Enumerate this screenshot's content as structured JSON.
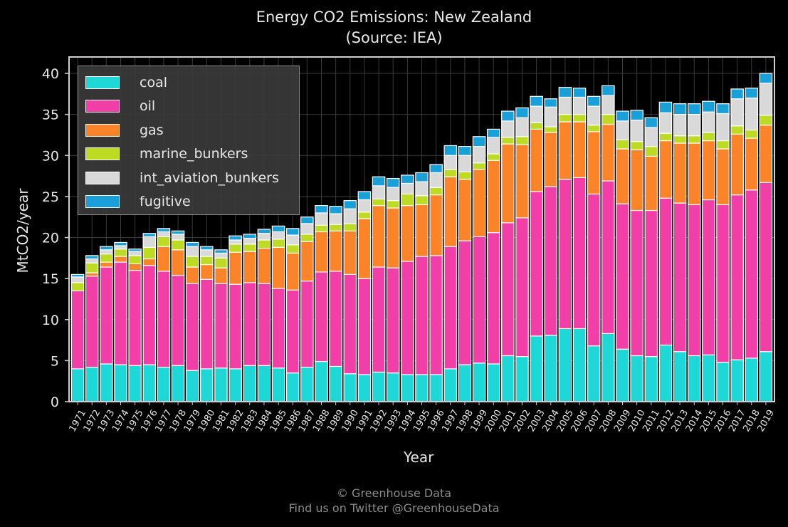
{
  "title_line1": "Energy CO2 Emissions: New Zealand",
  "title_line2": "(Source: IEA)",
  "credit_line1": "© Greenhouse Data",
  "credit_line2": "Find us on Twitter @GreenhouseData",
  "chart_data": {
    "type": "bar",
    "stacked": true,
    "title": "Energy CO2 Emissions: New Zealand (Source: IEA)",
    "xlabel": "Year",
    "ylabel": "MtCO2/year",
    "ylim": [
      0,
      42
    ],
    "yticks": [
      0,
      5,
      10,
      15,
      20,
      25,
      30,
      35,
      40
    ],
    "grid": true,
    "legend_position": "top-left",
    "categories": [
      "1971",
      "1972",
      "1973",
      "1974",
      "1975",
      "1976",
      "1977",
      "1978",
      "1979",
      "1980",
      "1981",
      "1982",
      "1983",
      "1984",
      "1985",
      "1986",
      "1987",
      "1988",
      "1989",
      "1990",
      "1991",
      "1992",
      "1993",
      "1994",
      "1995",
      "1996",
      "1997",
      "1998",
      "1999",
      "2000",
      "2001",
      "2002",
      "2003",
      "2004",
      "2005",
      "2006",
      "2007",
      "2008",
      "2009",
      "2010",
      "2011",
      "2012",
      "2013",
      "2014",
      "2015",
      "2016",
      "2017",
      "2018",
      "2019"
    ],
    "series": [
      {
        "name": "coal",
        "color": "#1dd8d6",
        "values": [
          4.0,
          4.2,
          4.6,
          4.5,
          4.4,
          4.5,
          4.2,
          4.4,
          3.8,
          4.0,
          4.1,
          4.0,
          4.4,
          4.4,
          4.1,
          3.5,
          4.2,
          4.9,
          4.3,
          3.4,
          3.3,
          3.6,
          3.5,
          3.3,
          3.3,
          3.3,
          4.0,
          4.5,
          4.7,
          4.6,
          5.6,
          5.5,
          8.0,
          8.1,
          8.9,
          8.9,
          6.8,
          8.3,
          6.4,
          5.6,
          5.5,
          6.9,
          6.1,
          5.6,
          5.7,
          4.8,
          5.1,
          5.3,
          6.1
        ]
      },
      {
        "name": "oil",
        "color": "#f23fa7",
        "values": [
          9.5,
          11.1,
          11.8,
          12.5,
          11.6,
          12.1,
          11.7,
          11.0,
          10.6,
          10.9,
          10.3,
          10.3,
          10.1,
          10.0,
          9.7,
          10.1,
          10.5,
          10.9,
          11.6,
          12.1,
          11.7,
          12.8,
          12.8,
          13.8,
          14.4,
          14.5,
          14.9,
          15.1,
          15.4,
          16.0,
          16.2,
          16.9,
          17.6,
          18.1,
          18.2,
          18.4,
          18.5,
          18.6,
          17.7,
          17.7,
          17.8,
          17.9,
          18.1,
          18.4,
          18.9,
          19.2,
          20.1,
          20.5,
          20.6
        ]
      },
      {
        "name": "gas",
        "color": "#fa8427",
        "values": [
          0.0,
          0.4,
          0.6,
          0.7,
          0.8,
          0.8,
          3.0,
          3.1,
          2.0,
          1.8,
          1.9,
          3.9,
          3.8,
          4.3,
          5.0,
          4.5,
          4.8,
          4.9,
          4.9,
          5.3,
          7.3,
          7.5,
          7.3,
          6.8,
          6.3,
          7.4,
          8.5,
          7.5,
          8.2,
          8.8,
          9.6,
          8.9,
          7.6,
          6.6,
          7.0,
          6.8,
          7.6,
          6.9,
          6.7,
          7.4,
          6.6,
          7.0,
          7.3,
          7.5,
          7.2,
          6.8,
          7.4,
          6.3,
          7.0
        ]
      },
      {
        "name": "marine_bunkers",
        "color": "#bcdb22",
        "values": [
          1.0,
          1.2,
          1.0,
          0.9,
          1.0,
          1.4,
          1.2,
          1.2,
          1.3,
          1.0,
          1.2,
          1.0,
          0.9,
          1.0,
          1.0,
          1.0,
          0.9,
          0.8,
          0.8,
          0.9,
          0.8,
          0.8,
          0.9,
          1.4,
          1.1,
          0.9,
          0.9,
          0.9,
          0.8,
          0.8,
          0.8,
          1.0,
          0.8,
          0.7,
          0.9,
          0.9,
          0.8,
          1.2,
          1.1,
          1.0,
          1.2,
          0.9,
          0.9,
          0.9,
          1.0,
          1.0,
          1.0,
          1.0,
          1.2
        ]
      },
      {
        "name": "int_aviation_bunkers",
        "color": "#d9d9d9",
        "values": [
          0.7,
          0.5,
          0.5,
          0.4,
          0.5,
          1.3,
          0.6,
          0.7,
          1.2,
          0.8,
          0.6,
          0.5,
          0.7,
          0.8,
          0.9,
          1.2,
          1.3,
          1.5,
          1.3,
          1.8,
          1.5,
          1.6,
          1.6,
          1.3,
          1.7,
          1.8,
          1.7,
          2.0,
          2.0,
          2.0,
          2.0,
          2.3,
          2.0,
          2.4,
          2.1,
          2.1,
          2.3,
          2.3,
          2.3,
          2.6,
          2.3,
          2.5,
          2.6,
          2.6,
          2.5,
          3.3,
          3.3,
          3.9,
          3.9
        ]
      },
      {
        "name": "fugitive",
        "color": "#19a0d8",
        "values": [
          0.3,
          0.4,
          0.4,
          0.4,
          0.3,
          0.4,
          0.4,
          0.4,
          0.5,
          0.4,
          0.4,
          0.5,
          0.5,
          0.5,
          0.7,
          0.8,
          0.8,
          0.9,
          0.9,
          1.0,
          1.0,
          1.1,
          1.1,
          1.0,
          1.1,
          1.0,
          1.2,
          1.1,
          1.2,
          1.0,
          1.2,
          1.2,
          1.2,
          1.0,
          1.2,
          1.1,
          1.2,
          1.2,
          1.2,
          1.2,
          1.2,
          1.3,
          1.3,
          1.3,
          1.3,
          1.2,
          1.2,
          1.2,
          1.2
        ]
      }
    ]
  }
}
